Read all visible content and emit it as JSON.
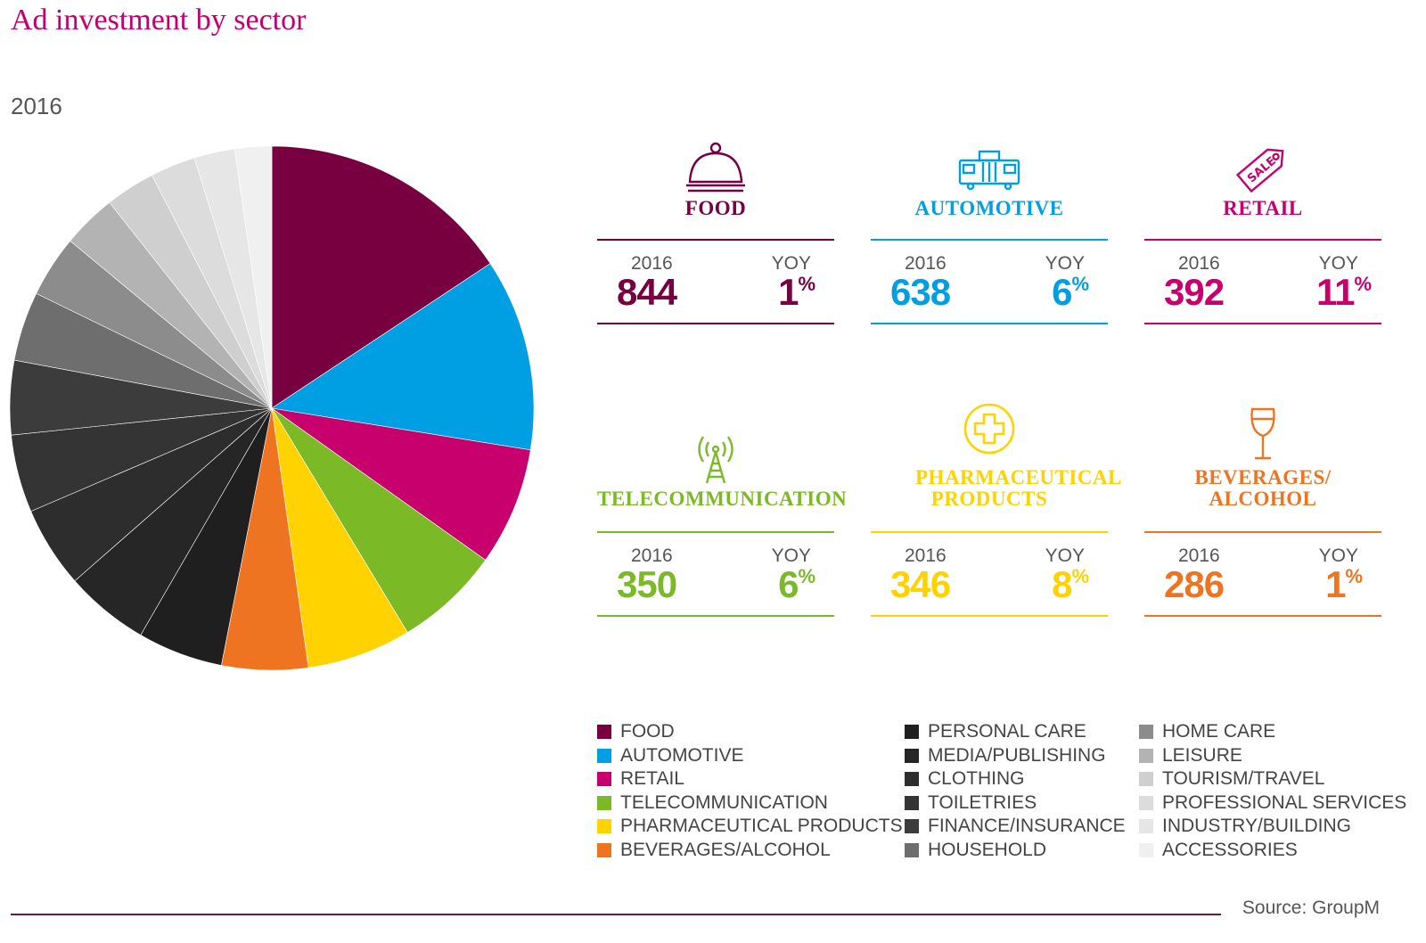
{
  "title": "Ad investment by sector",
  "year_label": "2016",
  "source": "Source: GroupM",
  "colors": {
    "accent": "#c4006e",
    "food": "#780040",
    "automotive": "#009fe3",
    "retail": "#c8006e",
    "telecommunication": "#7cb927",
    "pharmaceutical": "#ffd200",
    "beverages": "#ee7421"
  },
  "cards": [
    {
      "name": "FOOD",
      "icon": "cloche-icon",
      "color": "#780040",
      "col_2016": "2016",
      "value": "844",
      "col_yoy": "YOY",
      "yoy": "1",
      "pct": "%"
    },
    {
      "name": "AUTOMOTIVE",
      "icon": "vehicle-icon",
      "color": "#009fe3",
      "col_2016": "2016",
      "value": "638",
      "col_yoy": "YOY",
      "yoy": "6",
      "pct": "%"
    },
    {
      "name": "RETAIL",
      "icon": "sale-tag-icon",
      "color": "#c8006e",
      "col_2016": "2016",
      "value": "392",
      "col_yoy": "YOY",
      "yoy": "11",
      "pct": "%"
    },
    {
      "name": "TELECOMMUNICATION",
      "icon": "antenna-icon",
      "color": "#7cb927",
      "col_2016": "2016",
      "value": "350",
      "col_yoy": "YOY",
      "yoy": "6",
      "pct": "%"
    },
    {
      "name": "PHARMACEUTICAL PRODUCTS",
      "icon": "medical-cross-icon",
      "color": "#ffd200",
      "col_2016": "2016",
      "value": "346",
      "col_yoy": "YOY",
      "yoy": "8",
      "pct": "%"
    },
    {
      "name": "BEVERAGES/ ALCOHOL",
      "icon": "wine-glass-icon",
      "color": "#ee7421",
      "col_2016": "2016",
      "value": "286",
      "col_yoy": "YOY",
      "yoy": "1",
      "pct": "%"
    }
  ],
  "chart_data": {
    "type": "pie",
    "title": "Ad investment by sector",
    "subtitle": "2016",
    "slices": [
      {
        "label": "FOOD",
        "value": 844,
        "color": "#780040"
      },
      {
        "label": "AUTOMOTIVE",
        "value": 638,
        "color": "#009fe3"
      },
      {
        "label": "RETAIL",
        "value": 392,
        "color": "#c8006e"
      },
      {
        "label": "TELECOMMUNICATION",
        "value": 350,
        "color": "#7cb927"
      },
      {
        "label": "PHARMACEUTICAL PRODUCTS",
        "value": 346,
        "color": "#ffd200"
      },
      {
        "label": "BEVERAGES/ALCOHOL",
        "value": 286,
        "color": "#ee7421"
      },
      {
        "label": "PERSONAL CARE",
        "value": 283,
        "color": "#1f1f1f"
      },
      {
        "label": "MEDIA/PUBLISHING",
        "value": 280,
        "color": "#262626"
      },
      {
        "label": "CLOTHING",
        "value": 270,
        "color": "#2d2d2d"
      },
      {
        "label": "TOILETRIES",
        "value": 258,
        "color": "#343434"
      },
      {
        "label": "FINANCE/INSURANCE",
        "value": 246,
        "color": "#3c3c3c"
      },
      {
        "label": "HOUSEHOLD",
        "value": 230,
        "color": "#6e6e6e"
      },
      {
        "label": "HOME CARE",
        "value": 205,
        "color": "#8c8c8c"
      },
      {
        "label": "LEISURE",
        "value": 180,
        "color": "#b3b3b3"
      },
      {
        "label": "TOURISM/TRAVEL",
        "value": 165,
        "color": "#cfcfcf"
      },
      {
        "label": "PROFESSIONAL SERVICES",
        "value": 150,
        "color": "#dcdcdc"
      },
      {
        "label": "INDUSTRY/BUILDING",
        "value": 135,
        "color": "#e6e6e6"
      },
      {
        "label": "ACCESSORIES",
        "value": 122,
        "color": "#f0f0f0"
      }
    ],
    "legend": "bottom-right"
  }
}
